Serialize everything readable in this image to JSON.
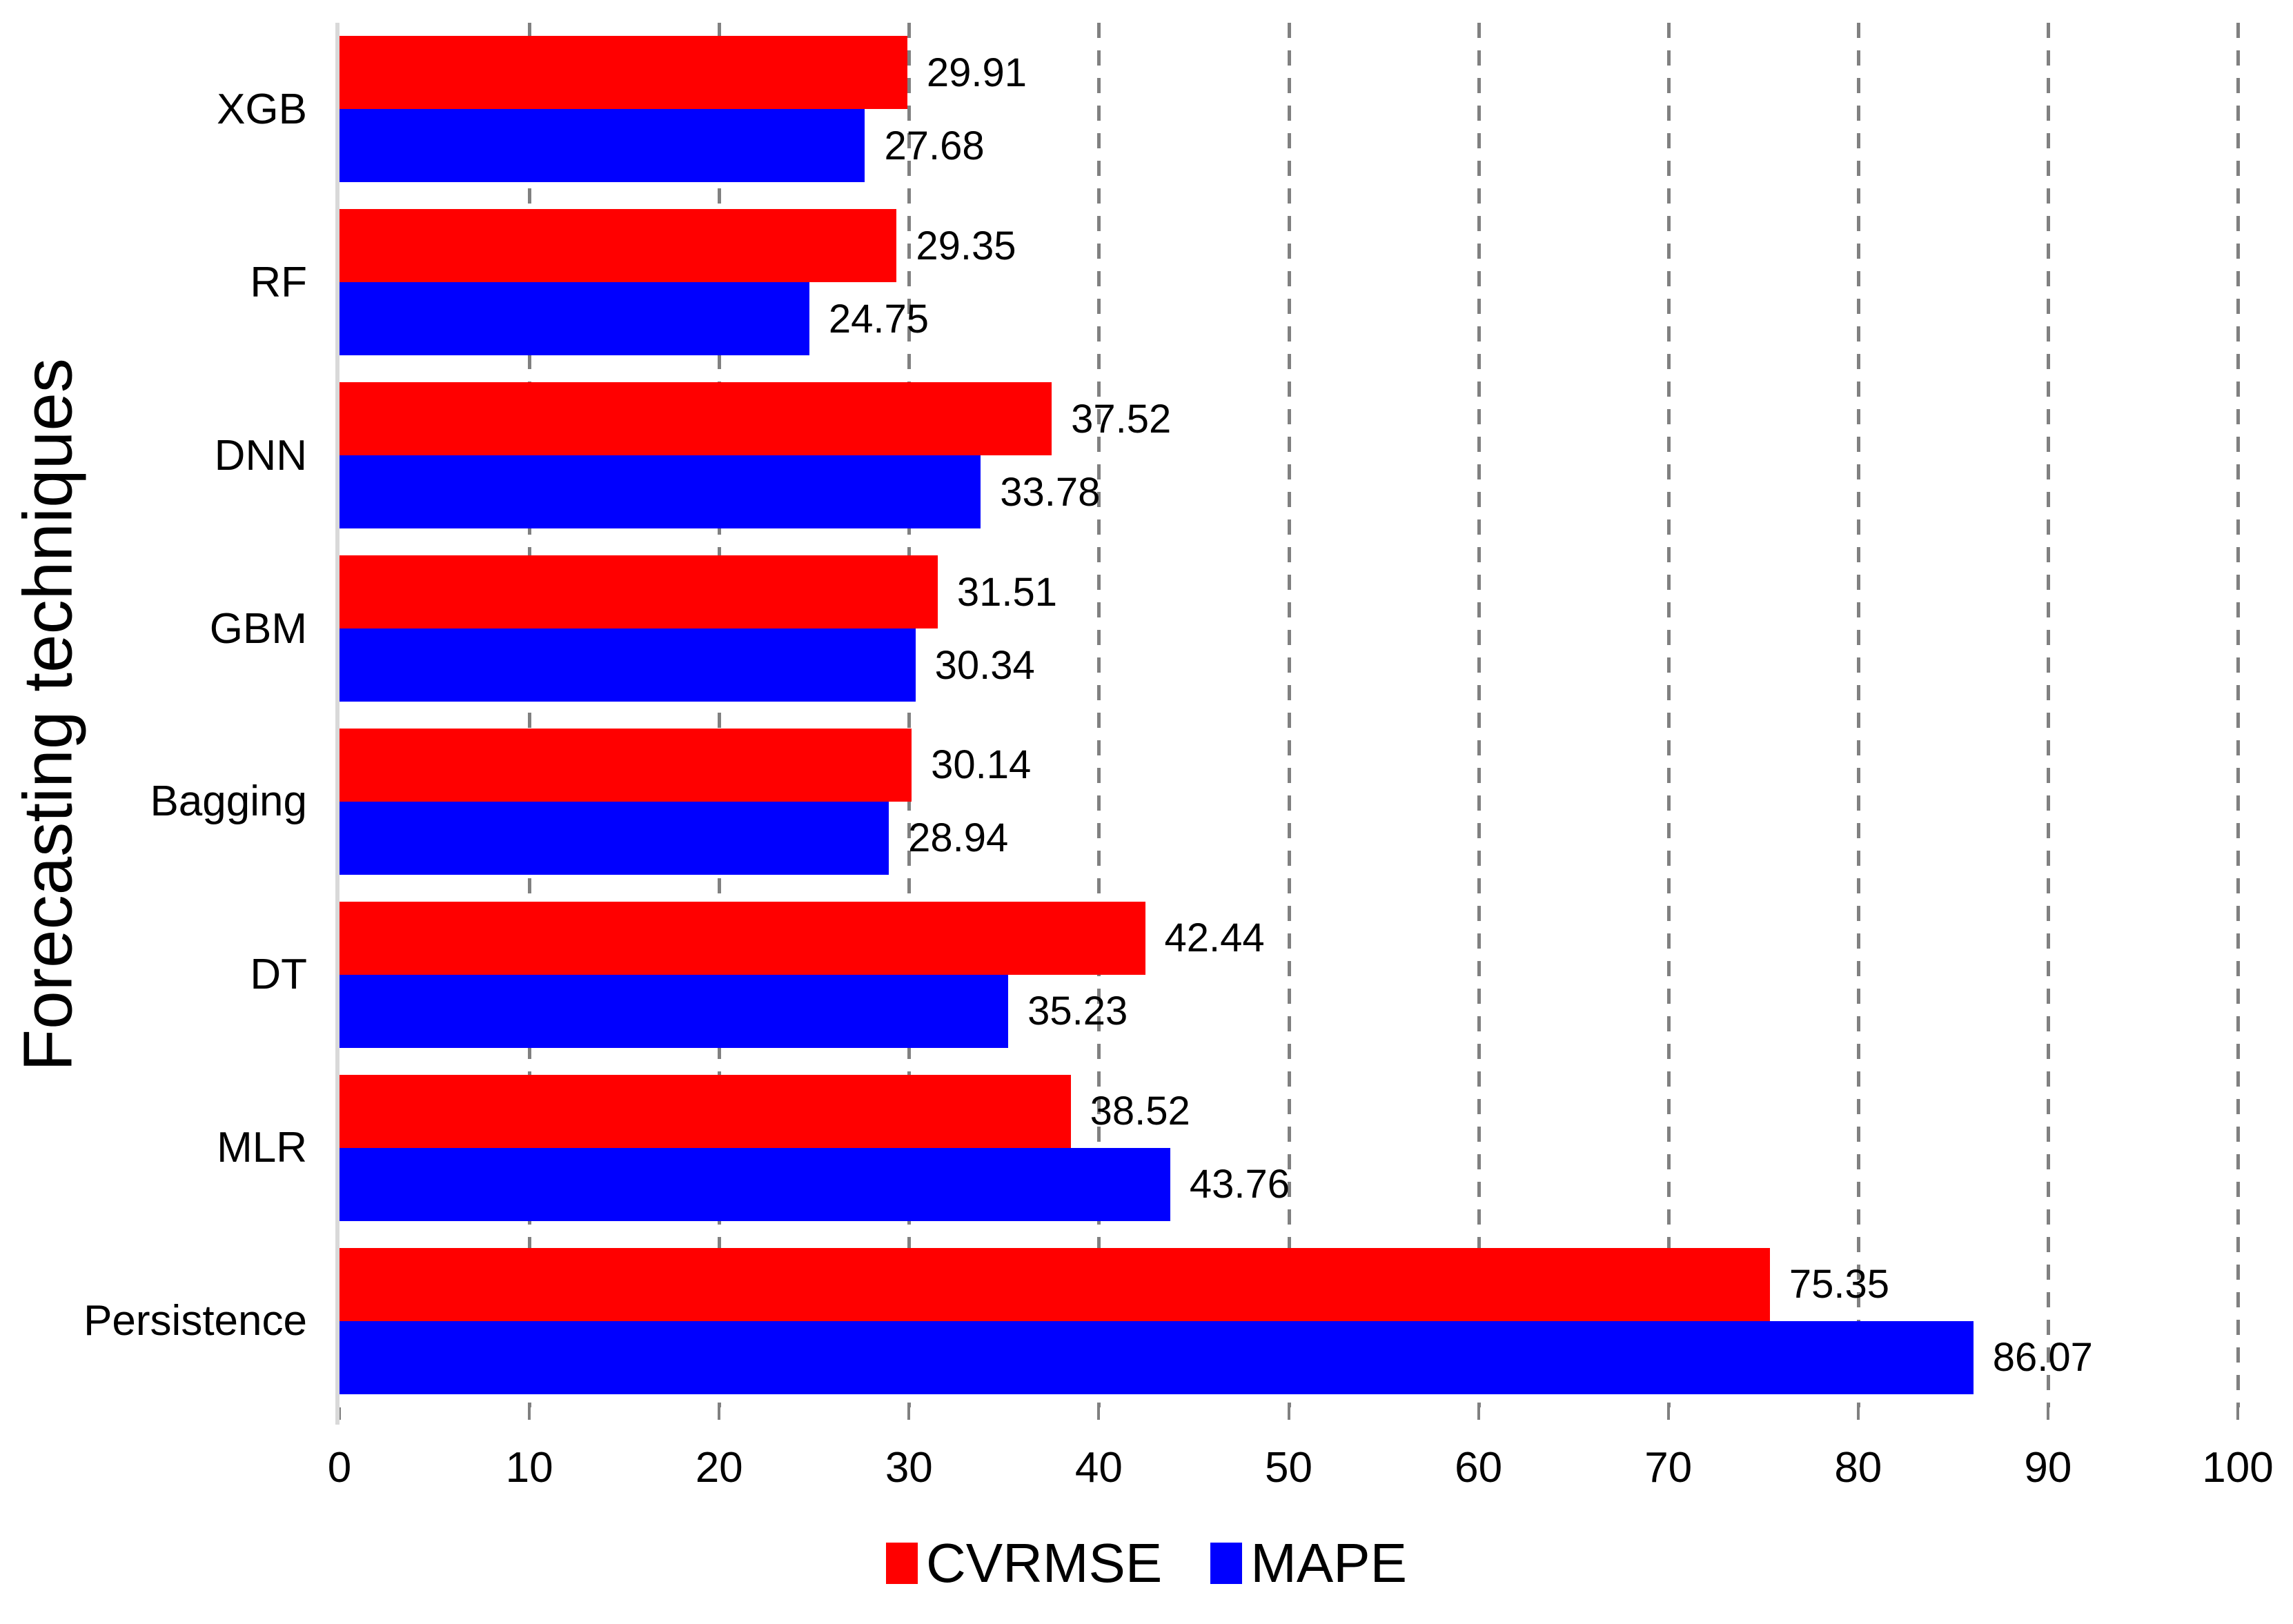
{
  "chart_data": {
    "type": "bar",
    "orientation": "horizontal",
    "title": "",
    "xlabel": "",
    "ylabel": "Forecasting techniques",
    "categories": [
      "XGB",
      "RF",
      "DNN",
      "GBM",
      "Bagging",
      "DT",
      "MLR",
      "Persistence"
    ],
    "series": [
      {
        "name": "CVRMSE",
        "color": "#ff0000",
        "values": [
          29.91,
          29.35,
          37.52,
          31.51,
          30.14,
          42.44,
          38.52,
          75.35
        ]
      },
      {
        "name": "MAPE",
        "color": "#0000ff",
        "values": [
          27.68,
          24.75,
          33.78,
          30.34,
          28.94,
          35.23,
          43.76,
          86.07
        ]
      }
    ],
    "value_labels": [
      "29.91",
      "27.68",
      "29.35",
      "24.75",
      "37.52",
      "33.78",
      "31.51",
      "30.34",
      "30.14",
      "28.94",
      "42.44",
      "35.23",
      "38.52",
      "43.76",
      "75.35",
      "86.07"
    ],
    "xlim": [
      0,
      100
    ],
    "x_ticks": [
      0,
      10,
      20,
      30,
      40,
      50,
      60,
      70,
      80,
      90,
      100
    ],
    "grid": "vertical-dashed",
    "legend_position": "bottom-center"
  },
  "colors": {
    "cvrmse": "#ff0000",
    "mape": "#0000ff",
    "gridline": "#808080",
    "axis_line": "#d9d9d9",
    "tick": "#808080",
    "text": "#000000",
    "background": "#ffffff"
  }
}
